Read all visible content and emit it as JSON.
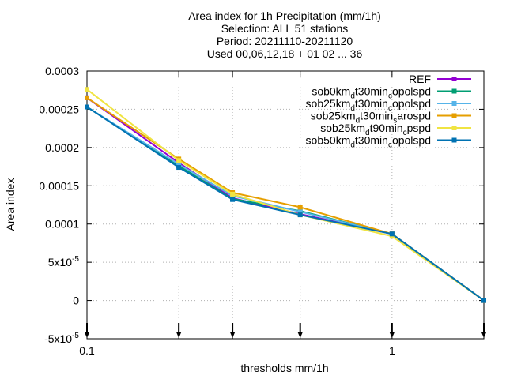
{
  "chart_data": {
    "type": "line",
    "title_lines": [
      "Area index  for 1h Precipitation (mm/1h)",
      "Selection: ALL      51 stations",
      "Period: 20211110-20211120",
      "Used 00,06,12,18 + 01 02 ... 36"
    ],
    "xlabel": "thresholds mm/1h",
    "ylabel": "Area index",
    "x_scale": "log",
    "xlim": [
      0.1,
      2
    ],
    "ylim": [
      -5e-05,
      0.0003
    ],
    "grid": true,
    "legend_position": "top-right",
    "x_ticks": [
      {
        "value": 0.1,
        "label": "0.1"
      },
      {
        "value": 1,
        "label": "1"
      }
    ],
    "x_tick_marks": [
      0.1,
      0.2,
      0.3,
      0.5,
      1,
      2
    ],
    "y_ticks": [
      {
        "value": -5e-05,
        "base": "-5x10",
        "exp": "-5"
      },
      {
        "value": 0,
        "base": "0",
        "exp": ""
      },
      {
        "value": 5e-05,
        "base": "5x10",
        "exp": "-5"
      },
      {
        "value": 0.0001,
        "base": "0.0001",
        "exp": ""
      },
      {
        "value": 0.00015,
        "base": "0.00015",
        "exp": ""
      },
      {
        "value": 0.0002,
        "base": "0.0002",
        "exp": ""
      },
      {
        "value": 0.00025,
        "base": "0.00025",
        "exp": ""
      },
      {
        "value": 0.0003,
        "base": "0.0003",
        "exp": ""
      }
    ],
    "x": [
      0.1,
      0.2,
      0.3,
      0.5,
      1,
      2
    ],
    "series": [
      {
        "name": "REF",
        "label_parts": [
          {
            "t": "REF"
          }
        ],
        "color": "#9400d3",
        "marker": "square",
        "values": [
          0.000265,
          0.00018,
          0.000134,
          0.000113,
          8.7e-05,
          0.0
        ]
      },
      {
        "name": "sob0kmdt30mincopolspd",
        "label_parts": [
          {
            "t": "sob0km"
          },
          {
            "t": "d",
            "sub": true
          },
          {
            "t": "t30min"
          },
          {
            "t": "c",
            "sub": true
          },
          {
            "t": "opolspd"
          }
        ],
        "color": "#009e73",
        "marker": "square",
        "values": [
          0.000253,
          0.000176,
          0.000133,
          0.000117,
          8.7e-05,
          0.0
        ]
      },
      {
        "name": "sob25kmdt30mincopolspd",
        "label_parts": [
          {
            "t": "sob25km"
          },
          {
            "t": "d",
            "sub": true
          },
          {
            "t": "t30min"
          },
          {
            "t": "c",
            "sub": true
          },
          {
            "t": "opolspd"
          }
        ],
        "color": "#56b4e9",
        "marker": "square",
        "values": [
          0.000253,
          0.000178,
          0.000137,
          0.000116,
          8.7e-05,
          0.0
        ]
      },
      {
        "name": "sob25kmdt30minsarospd",
        "label_parts": [
          {
            "t": "sob25km"
          },
          {
            "t": "d",
            "sub": true
          },
          {
            "t": "t30min"
          },
          {
            "t": "s",
            "sub": true
          },
          {
            "t": "arospd"
          }
        ],
        "color": "#e69f00",
        "marker": "square",
        "values": [
          0.000265,
          0.000185,
          0.000141,
          0.000122,
          8.7e-05,
          0.0
        ]
      },
      {
        "name": "sob25kmdt90mincpspd",
        "label_parts": [
          {
            "t": "sob25km"
          },
          {
            "t": "d",
            "sub": true
          },
          {
            "t": "t90min"
          },
          {
            "t": "c",
            "sub": true
          },
          {
            "t": "pspd"
          }
        ],
        "color": "#f0e442",
        "marker": "square",
        "values": [
          0.000276,
          0.000183,
          0.000139,
          0.000112,
          8.4e-05,
          0.0
        ]
      },
      {
        "name": "sob50kmdt30mincopolspd",
        "label_parts": [
          {
            "t": "sob50km"
          },
          {
            "t": "d",
            "sub": true
          },
          {
            "t": "t30min"
          },
          {
            "t": "c",
            "sub": true
          },
          {
            "t": "opolspd"
          }
        ],
        "color": "#0072b2",
        "marker": "square",
        "values": [
          0.000253,
          0.000174,
          0.000132,
          0.000112,
          8.7e-05,
          0.0
        ]
      }
    ]
  }
}
